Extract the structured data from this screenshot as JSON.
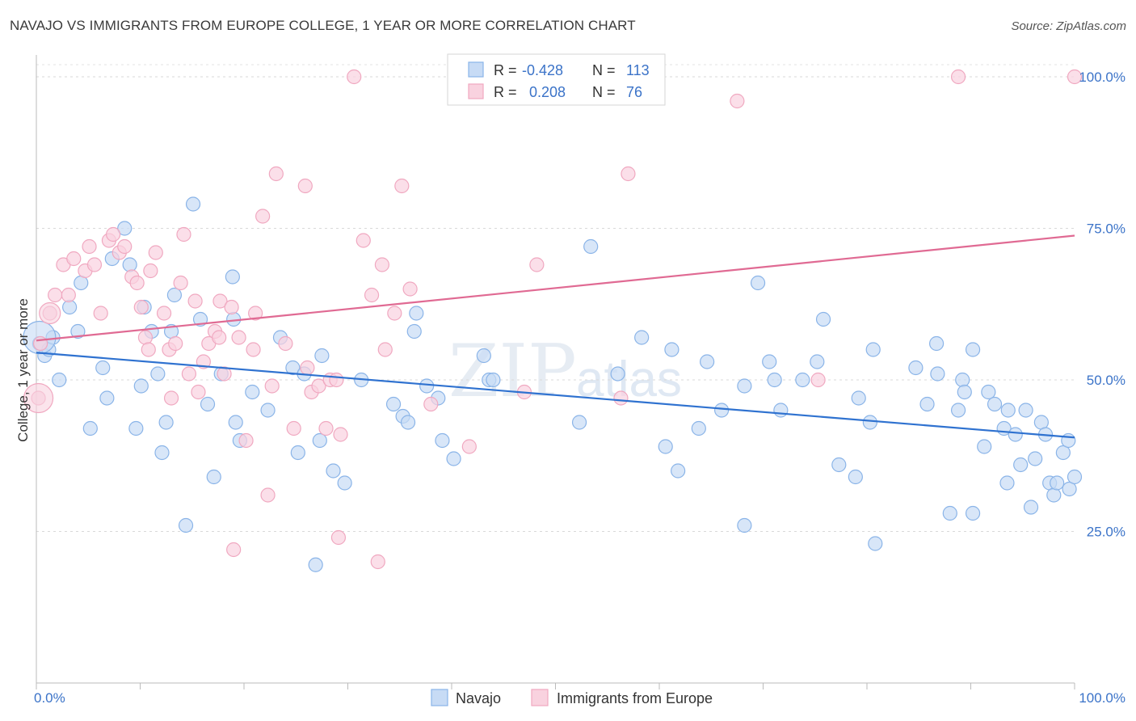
{
  "title": "NAVAJO VS IMMIGRANTS FROM EUROPE COLLEGE, 1 YEAR OR MORE CORRELATION CHART",
  "source": "Source: ZipAtlas.com",
  "watermark": {
    "zip": "ZIP",
    "atlas": "atlas"
  },
  "legend": {
    "r_label": "R =",
    "n_label": "N =",
    "navajo": {
      "r": "-0.428",
      "n": "113"
    },
    "europe": {
      "r": "0.208",
      "n": "76"
    }
  },
  "chart_data": {
    "type": "scatter",
    "xlabel": "",
    "ylabel": "College, 1 year or more",
    "xlim": [
      0,
      100
    ],
    "ylim": [
      0,
      102
    ],
    "x_tick_labels": [
      "0.0%",
      "100.0%"
    ],
    "y_ticks": [
      25,
      50,
      75,
      100
    ],
    "y_tick_labels": [
      "25.0%",
      "50.0%",
      "75.0%",
      "100.0%"
    ],
    "grid": "horizontal dashed",
    "legend_placement": "top-center",
    "series": [
      {
        "name": "Navajo",
        "color": "#8ab4e8",
        "fill": "#c7dbf5",
        "trend_color": "#2f72d0",
        "trend": [
          [
            0,
            54.5
          ],
          [
            100,
            40.5
          ]
        ],
        "points": [
          [
            0.3,
            56
          ],
          [
            0.8,
            54
          ],
          [
            1.2,
            55
          ],
          [
            1.6,
            57
          ],
          [
            2.2,
            50
          ],
          [
            3.2,
            62
          ],
          [
            4,
            58
          ],
          [
            4.3,
            66
          ],
          [
            5.2,
            42
          ],
          [
            6.8,
            47
          ],
          [
            6.4,
            52
          ],
          [
            7.3,
            70
          ],
          [
            8.5,
            75
          ],
          [
            9,
            69
          ],
          [
            9.6,
            42
          ],
          [
            10.1,
            49
          ],
          [
            10.4,
            62
          ],
          [
            11.1,
            58
          ],
          [
            11.7,
            51
          ],
          [
            12.1,
            38
          ],
          [
            12.5,
            43
          ],
          [
            13,
            58
          ],
          [
            13.3,
            64
          ],
          [
            14.4,
            26
          ],
          [
            15.1,
            79
          ],
          [
            15.8,
            60
          ],
          [
            16.5,
            46
          ],
          [
            17.1,
            34
          ],
          [
            17.8,
            51
          ],
          [
            18.9,
            67
          ],
          [
            19,
            60
          ],
          [
            19.2,
            43
          ],
          [
            19.6,
            40
          ],
          [
            20.8,
            48
          ],
          [
            22.3,
            45
          ],
          [
            23.5,
            57
          ],
          [
            24.7,
            52
          ],
          [
            25.2,
            38
          ],
          [
            25.8,
            51
          ],
          [
            27.3,
            40
          ],
          [
            27.5,
            54
          ],
          [
            28.6,
            35
          ],
          [
            29.7,
            33
          ],
          [
            31.3,
            50
          ],
          [
            34.4,
            46
          ],
          [
            35.3,
            44
          ],
          [
            35.8,
            43
          ],
          [
            36.6,
            61
          ],
          [
            36.4,
            58
          ],
          [
            38.7,
            47
          ],
          [
            39.1,
            40
          ],
          [
            40.2,
            37
          ],
          [
            43.1,
            54
          ],
          [
            43.6,
            50
          ],
          [
            44,
            50
          ],
          [
            52.3,
            43
          ],
          [
            53.4,
            72
          ],
          [
            56,
            51
          ],
          [
            58.3,
            57
          ],
          [
            60.6,
            39
          ],
          [
            61.2,
            55
          ],
          [
            61.8,
            35
          ],
          [
            63.8,
            42
          ],
          [
            64.6,
            53
          ],
          [
            66,
            45
          ],
          [
            68.2,
            49
          ],
          [
            68.2,
            26
          ],
          [
            69.5,
            66
          ],
          [
            70.6,
            53
          ],
          [
            71.1,
            50
          ],
          [
            71.7,
            45
          ],
          [
            73.8,
            50
          ],
          [
            75.8,
            60
          ],
          [
            77.3,
            36
          ],
          [
            79.2,
            47
          ],
          [
            80.3,
            43
          ],
          [
            80.6,
            55
          ],
          [
            80.8,
            23
          ],
          [
            84.7,
            52
          ],
          [
            85.8,
            46
          ],
          [
            86.8,
            51
          ],
          [
            86.7,
            56
          ],
          [
            88,
            28
          ],
          [
            88.8,
            45
          ],
          [
            89.2,
            50
          ],
          [
            89.4,
            48
          ],
          [
            90.2,
            55
          ],
          [
            90.2,
            28
          ],
          [
            91.3,
            39
          ],
          [
            91.7,
            48
          ],
          [
            92.3,
            46
          ],
          [
            93.2,
            42
          ],
          [
            93.5,
            33
          ],
          [
            93.6,
            45
          ],
          [
            94.3,
            41
          ],
          [
            94.8,
            36
          ],
          [
            95.3,
            45
          ],
          [
            95.8,
            29
          ],
          [
            96.2,
            37
          ],
          [
            96.8,
            43
          ],
          [
            97.6,
            33
          ],
          [
            97.2,
            41
          ],
          [
            98,
            31
          ],
          [
            98.3,
            33
          ],
          [
            98.9,
            38
          ],
          [
            99.4,
            40
          ],
          [
            99.5,
            32
          ],
          [
            100,
            34
          ],
          [
            26.9,
            19.5
          ],
          [
            75.2,
            53
          ],
          [
            78.9,
            34
          ],
          [
            37.6,
            49
          ]
        ]
      },
      {
        "name": "Immigrants from Europe",
        "color": "#f0a8c0",
        "fill": "#f9d2df",
        "trend_color": "#e06a93",
        "trend": [
          [
            0,
            56.5
          ],
          [
            100,
            73.8
          ]
        ],
        "points": [
          [
            0.2,
            47
          ],
          [
            0.4,
            56
          ],
          [
            1.3,
            61
          ],
          [
            1.8,
            64
          ],
          [
            2.6,
            69
          ],
          [
            3.1,
            64
          ],
          [
            3.6,
            70
          ],
          [
            4.7,
            68
          ],
          [
            5.1,
            72
          ],
          [
            5.6,
            69
          ],
          [
            6.2,
            61
          ],
          [
            7,
            73
          ],
          [
            7.4,
            74
          ],
          [
            8,
            71
          ],
          [
            8.5,
            72
          ],
          [
            9.2,
            67
          ],
          [
            9.7,
            66
          ],
          [
            10.1,
            62
          ],
          [
            10.5,
            57
          ],
          [
            10.8,
            55
          ],
          [
            11,
            68
          ],
          [
            11.5,
            71
          ],
          [
            12.3,
            61
          ],
          [
            12.8,
            55
          ],
          [
            13,
            47
          ],
          [
            13.4,
            56
          ],
          [
            13.9,
            66
          ],
          [
            14.2,
            74
          ],
          [
            14.7,
            51
          ],
          [
            15.3,
            63
          ],
          [
            15.6,
            48
          ],
          [
            16.1,
            53
          ],
          [
            16.6,
            56
          ],
          [
            17.2,
            58
          ],
          [
            17.6,
            57
          ],
          [
            17.7,
            63
          ],
          [
            18.1,
            51
          ],
          [
            18.8,
            62
          ],
          [
            19,
            22
          ],
          [
            19.5,
            57
          ],
          [
            20.2,
            40
          ],
          [
            20.9,
            55
          ],
          [
            21.1,
            61
          ],
          [
            21.8,
            77
          ],
          [
            22.3,
            31
          ],
          [
            22.7,
            49
          ],
          [
            23.1,
            84
          ],
          [
            24,
            56
          ],
          [
            24.8,
            42
          ],
          [
            25.9,
            82
          ],
          [
            26.1,
            52
          ],
          [
            26.5,
            48
          ],
          [
            27.2,
            49
          ],
          [
            27.9,
            42
          ],
          [
            28.3,
            50
          ],
          [
            28.9,
            50
          ],
          [
            29.1,
            24
          ],
          [
            29.3,
            41
          ],
          [
            30.6,
            100
          ],
          [
            31.5,
            73
          ],
          [
            32.3,
            64
          ],
          [
            32.9,
            20
          ],
          [
            33.3,
            69
          ],
          [
            33.6,
            55
          ],
          [
            34.5,
            61
          ],
          [
            35.2,
            82
          ],
          [
            36,
            65
          ],
          [
            38,
            46
          ],
          [
            41.7,
            39
          ],
          [
            47,
            48
          ],
          [
            48.2,
            69
          ],
          [
            56.3,
            47
          ],
          [
            57,
            84
          ],
          [
            67.5,
            96
          ],
          [
            75.3,
            50
          ],
          [
            88.8,
            100
          ],
          [
            100,
            100
          ]
        ]
      }
    ]
  },
  "bottom_legend": [
    "Navajo",
    "Immigrants from Europe"
  ]
}
